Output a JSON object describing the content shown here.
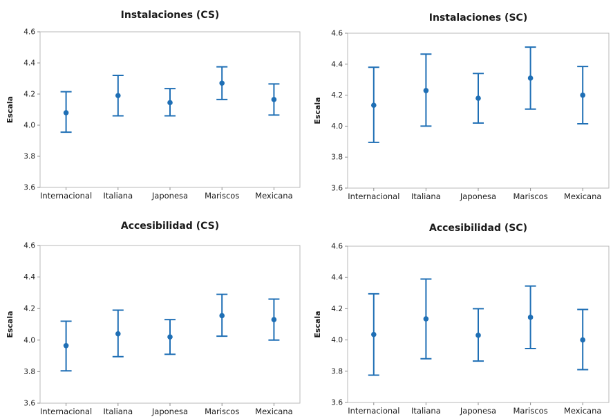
{
  "colors": {
    "series": "#1f6fb5",
    "frame": "#b9b9b9",
    "text": "#1a1a1a"
  },
  "chart_data": [
    {
      "type": "errorbar",
      "title": "Instalaciones (CS)",
      "ylabel": "Escala",
      "categories": [
        "Internacional",
        "Italiana",
        "Japonesa",
        "Mariscos",
        "Mexicana"
      ],
      "mean": [
        4.08,
        4.19,
        4.145,
        4.27,
        4.165
      ],
      "lower": [
        3.955,
        4.06,
        4.06,
        4.165,
        4.065
      ],
      "upper": [
        4.215,
        4.32,
        4.235,
        4.375,
        4.265
      ],
      "ylim": [
        3.6,
        4.6
      ],
      "yticks": [
        "3.6",
        "3.8",
        "4.0",
        "4.2",
        "4.4",
        "4.6"
      ],
      "grid": false
    },
    {
      "type": "errorbar",
      "title": "Instalaciones (SC)",
      "ylabel": "Escala",
      "categories": [
        "Internacional",
        "Italiana",
        "Japonesa",
        "Mariscos",
        "Mexicana"
      ],
      "mean": [
        4.135,
        4.23,
        4.18,
        4.31,
        4.2
      ],
      "lower": [
        3.895,
        4.0,
        4.02,
        4.11,
        4.015
      ],
      "upper": [
        4.38,
        4.465,
        4.34,
        4.51,
        4.385
      ],
      "ylim": [
        3.6,
        4.6
      ],
      "yticks": [
        "3.6",
        "3.8",
        "4.0",
        "4.2",
        "4.4",
        "4.6"
      ],
      "grid": false
    },
    {
      "type": "errorbar",
      "title": "Accesibilidad (CS)",
      "ylabel": "Escala",
      "categories": [
        "Internacional",
        "Italiana",
        "Japonesa",
        "Mariscos",
        "Mexicana"
      ],
      "mean": [
        3.965,
        4.04,
        4.02,
        4.155,
        4.13
      ],
      "lower": [
        3.805,
        3.895,
        3.91,
        4.025,
        4.0
      ],
      "upper": [
        4.12,
        4.19,
        4.13,
        4.29,
        4.26
      ],
      "ylim": [
        3.6,
        4.6
      ],
      "yticks": [
        "3.6",
        "3.8",
        "4.0",
        "4.2",
        "4.4",
        "4.6"
      ],
      "grid": false
    },
    {
      "type": "errorbar",
      "title": "Accesibilidad (SC)",
      "ylabel": "Escala",
      "categories": [
        "Internacional",
        "Italiana",
        "Japonesa",
        "Mariscos",
        "Mexicana"
      ],
      "mean": [
        4.035,
        4.135,
        4.03,
        4.145,
        4.0
      ],
      "lower": [
        3.775,
        3.88,
        3.865,
        3.945,
        3.81
      ],
      "upper": [
        4.295,
        4.39,
        4.2,
        4.345,
        4.195
      ],
      "ylim": [
        3.6,
        4.6
      ],
      "yticks": [
        "3.6",
        "3.8",
        "4.0",
        "4.2",
        "4.4",
        "4.6"
      ],
      "grid": false
    }
  ]
}
